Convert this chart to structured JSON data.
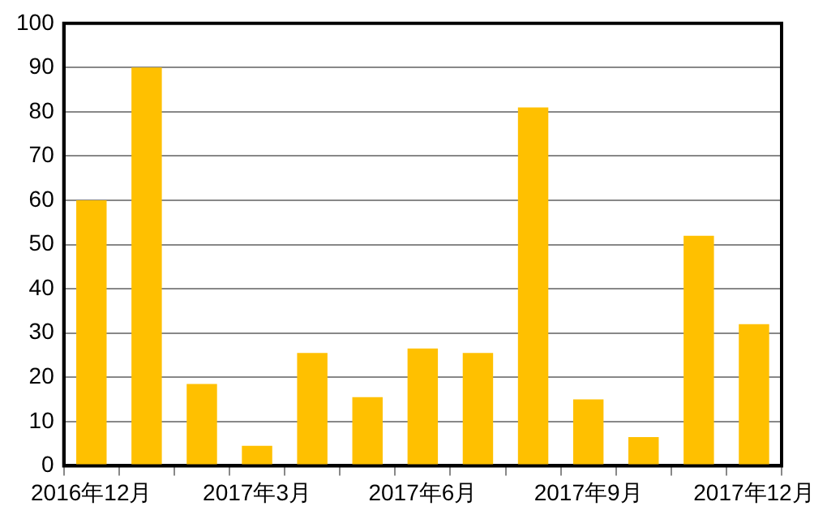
{
  "chart_data": {
    "type": "bar",
    "categories": [
      "2016年12月",
      null,
      null,
      "2017年3月",
      null,
      null,
      "2017年6月",
      null,
      null,
      "2017年9月",
      null,
      null,
      "2017年12月"
    ],
    "values": [
      60,
      90,
      18.5,
      4.5,
      25.5,
      15.5,
      26.5,
      25.5,
      81,
      15,
      6.5,
      52,
      32
    ],
    "color": "#ffc000",
    "ylim": [
      0,
      100
    ],
    "yticks": [
      0,
      10,
      20,
      30,
      40,
      50,
      60,
      70,
      80,
      90,
      100
    ],
    "grid": "y"
  }
}
